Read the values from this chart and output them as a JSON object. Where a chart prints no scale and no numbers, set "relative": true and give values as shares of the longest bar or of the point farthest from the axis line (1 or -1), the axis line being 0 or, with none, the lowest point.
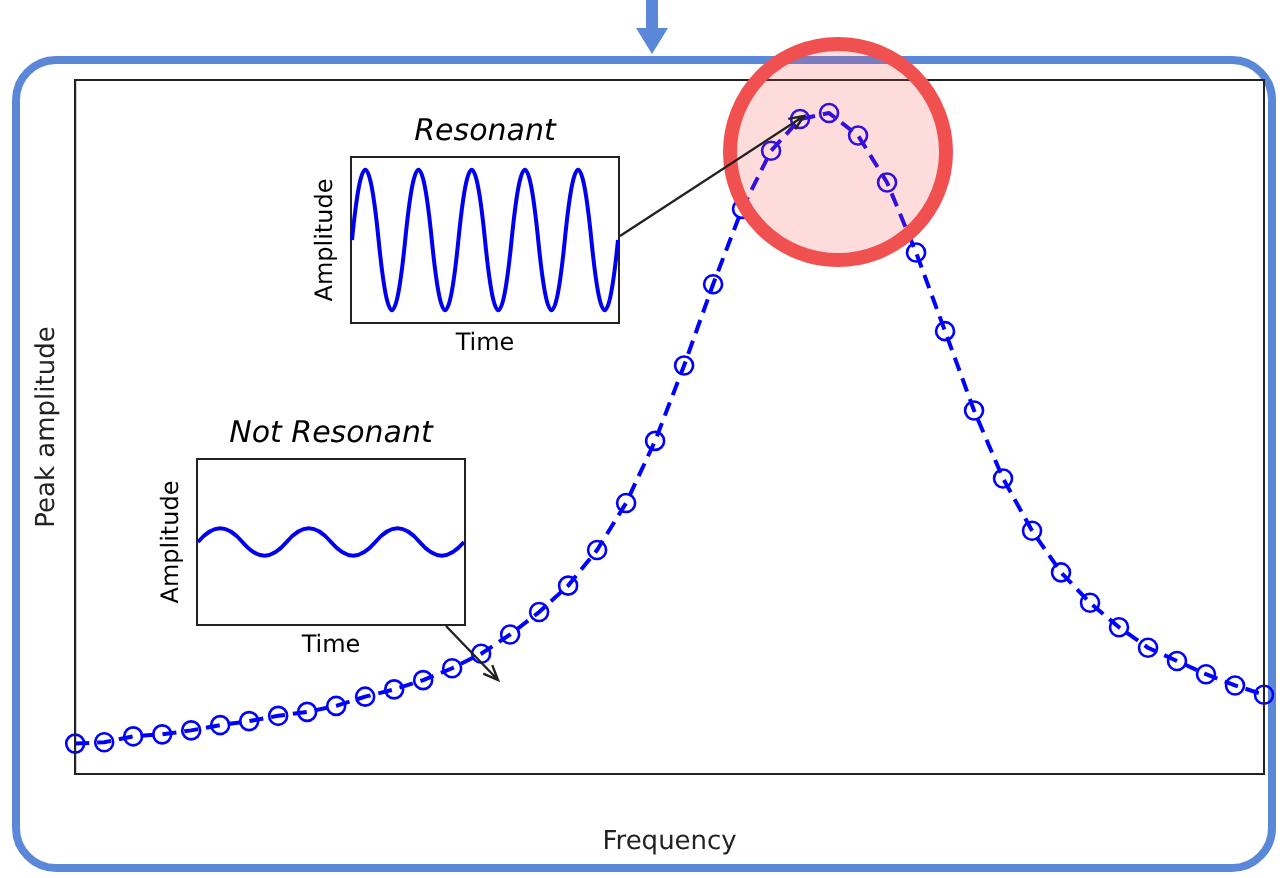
{
  "chart_data": {
    "type": "line",
    "relative": true,
    "xlabel": "Frequency",
    "ylabel": "Peak amplitude",
    "categories": [
      null,
      null,
      null,
      null,
      null,
      null,
      null,
      null,
      null,
      null,
      null,
      null,
      null,
      null,
      null,
      null,
      null,
      null,
      null,
      null,
      null,
      null,
      null,
      null,
      null,
      null,
      null,
      null,
      null,
      null,
      null,
      null,
      null,
      null,
      null,
      null,
      null,
      null,
      null,
      null,
      null,
      null
    ],
    "series": [
      {
        "color": "#0000ff",
        "values": [
          0.046,
          0.048,
          0.057,
          0.06,
          0.066,
          0.074,
          0.08,
          0.088,
          0.094,
          0.103,
          0.117,
          0.128,
          0.142,
          0.16,
          0.182,
          0.211,
          0.245,
          0.285,
          0.339,
          0.41,
          0.504,
          0.618,
          0.741,
          0.855,
          0.943,
          0.991,
          1,
          0.966,
          0.895,
          0.789,
          0.67,
          0.55,
          0.447,
          0.368,
          0.305,
          0.259,
          0.222,
          0.191,
          0.171,
          0.151,
          0.134,
          0.12
        ]
      }
    ],
    "marker": "circle",
    "line_style": "dashed",
    "grid": false,
    "legend": false,
    "annotations": [
      "Resonant",
      "Amplitude",
      "Time",
      "Not Resonant",
      "Amplitude",
      "Time"
    ]
  }
}
